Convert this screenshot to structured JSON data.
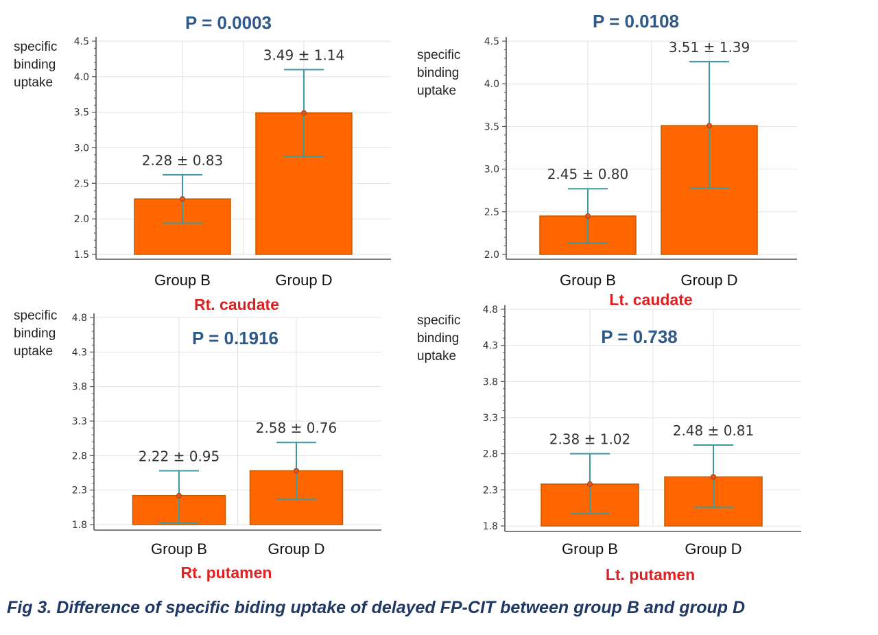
{
  "chart_data": [
    {
      "type": "bar",
      "title": "P = 0.0003",
      "subtitle": "Rt. caudate",
      "ylabel": "specific binding uptake",
      "categories": [
        "Group B",
        "Group D"
      ],
      "values": [
        2.28,
        3.49
      ],
      "error": [
        0.83,
        1.14
      ],
      "error_bar_range": [
        [
          1.94,
          2.62
        ],
        [
          2.88,
          4.1
        ]
      ],
      "data_labels": [
        "2.28 ± 0.83",
        "3.49 ± 1.14"
      ],
      "ylim": [
        1.5,
        4.5
      ],
      "yticks": [
        "1.5",
        "2.0",
        "2.5",
        "3.0",
        "3.5",
        "4.0",
        "4.5"
      ],
      "grid": true
    },
    {
      "type": "bar",
      "title": "P = 0.0108",
      "subtitle": "Lt. caudate",
      "ylabel": "specific binding uptake",
      "categories": [
        "Group B",
        "Group D"
      ],
      "values": [
        2.45,
        3.51
      ],
      "error": [
        0.8,
        1.39
      ],
      "error_bar_range": [
        [
          2.13,
          2.77
        ],
        [
          2.78,
          4.26
        ]
      ],
      "data_labels": [
        "2.45 ± 0.80",
        "3.51 ± 1.39"
      ],
      "ylim": [
        2.0,
        4.5
      ],
      "yticks": [
        "2.0",
        "2.5",
        "3.0",
        "3.5",
        "4.0",
        "4.5"
      ],
      "grid": true
    },
    {
      "type": "bar",
      "title": "P = 0.1916",
      "subtitle": "Rt. putamen",
      "ylabel": "specific binding uptake",
      "categories": [
        "Group B",
        "Group D"
      ],
      "values": [
        2.22,
        2.58
      ],
      "error": [
        0.95,
        0.76
      ],
      "error_bar_range": [
        [
          1.82,
          2.58
        ],
        [
          2.17,
          2.99
        ]
      ],
      "data_labels": [
        "2.22 ± 0.95",
        "2.58 ± 0.76"
      ],
      "ylim": [
        1.8,
        4.8
      ],
      "yticks": [
        "1.8",
        "2.3",
        "2.8",
        "3.3",
        "3.8",
        "4.3",
        "4.8"
      ],
      "grid": true
    },
    {
      "type": "bar",
      "title": "P = 0.738",
      "subtitle": "Lt. putamen",
      "ylabel": "specific binding uptake",
      "categories": [
        "Group B",
        "Group D"
      ],
      "values": [
        2.38,
        2.48
      ],
      "error": [
        1.02,
        0.81
      ],
      "error_bar_range": [
        [
          1.97,
          2.8
        ],
        [
          2.06,
          2.92
        ]
      ],
      "data_labels": [
        "2.38 ± 1.02",
        "2.48 ± 0.81"
      ],
      "ylim": [
        1.8,
        4.8
      ],
      "yticks": [
        "1.8",
        "2.3",
        "2.8",
        "3.3",
        "3.8",
        "4.3",
        "4.8"
      ],
      "grid": true
    }
  ],
  "caption": "Fig 3. Difference of specific biding uptake of delayed FP-CIT between group B and group D",
  "colors": {
    "bar_fill": "#ff6600",
    "bar_stroke": "#c25a00",
    "error_bar": "#3f9aa0",
    "pvalue_text": "#2e5a8a",
    "region_text": "#e02020",
    "caption_text": "#1f3864",
    "axis": "#555555",
    "grid": "#e2e2e2"
  }
}
